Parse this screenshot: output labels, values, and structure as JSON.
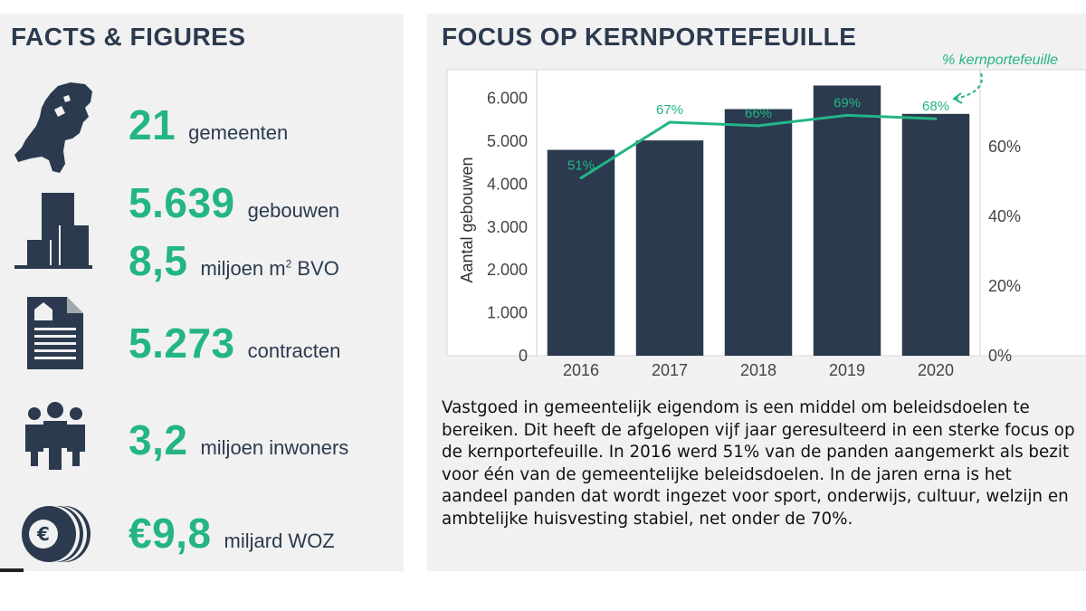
{
  "facts": {
    "title": "FACTS & FIGURES",
    "items": [
      {
        "number": "21",
        "unit": "gemeenten",
        "icon": "netherlands-map-icon"
      },
      {
        "number": "5.639",
        "unit": "gebouwen",
        "icon": "buildings-icon"
      },
      {
        "number": "8,5",
        "unit": "miljoen m",
        "unit_sup": "2",
        "unit_suffix": " BVO",
        "icon": "buildings-icon"
      },
      {
        "number": "5.273",
        "unit": "contracten",
        "icon": "contract-document-icon"
      },
      {
        "number": "3,2",
        "unit": "miljoen inwoners",
        "icon": "people-group-icon"
      },
      {
        "number": "€9,8",
        "unit": "miljard WOZ",
        "icon": "euro-coins-icon"
      }
    ]
  },
  "chart_section": {
    "title": "FOCUS OP KERNPORTEFEUILLE",
    "body_text": "Vastgoed in gemeentelijk eigendom is een middel om beleidsdoelen te bereiken. Dit heeft de afgelopen vijf jaar geresulteerd in een sterke focus op de kernportefeuille. In 2016 werd 51% van de panden aangemerkt als bezit voor één van de gemeentelijke beleidsdoelen. In de jaren erna is het aandeel panden dat wordt ingezet voor sport, onderwijs, cultuur, welzijn en ambtelijke huisvesting stabiel, net onder de 70%."
  },
  "colors": {
    "accent": "#23b585",
    "bar": "#2b3a4e",
    "text_dark": "#2b3a4e"
  },
  "chart_data": {
    "type": "bar",
    "categories": [
      "2016",
      "2017",
      "2018",
      "2019",
      "2020"
    ],
    "series": [
      {
        "type": "bar",
        "axis": "left",
        "values": [
          4800,
          5020,
          5750,
          6300,
          5639
        ]
      },
      {
        "name": "% kernportefeuille",
        "type": "line",
        "axis": "right",
        "values": [
          51,
          67,
          66,
          69,
          68
        ],
        "labels": [
          "51%",
          "67%",
          "66%",
          "69%",
          "68%"
        ]
      }
    ],
    "ylabel": "Aantal gebouwen",
    "ylim": [
      0,
      6500
    ],
    "yticks": [
      0,
      1000,
      2000,
      3000,
      4000,
      5000,
      6000
    ],
    "ytick_labels": [
      "0",
      "1.000",
      "2.000",
      "3.000",
      "4.000",
      "5.000",
      "6.000"
    ],
    "y2lim": [
      0,
      80
    ],
    "y2ticks": [
      0,
      20,
      40,
      60
    ],
    "y2tick_labels": [
      "0%",
      "20%",
      "40%",
      "60%"
    ],
    "grid": false,
    "legend": "annotation at top-right"
  }
}
